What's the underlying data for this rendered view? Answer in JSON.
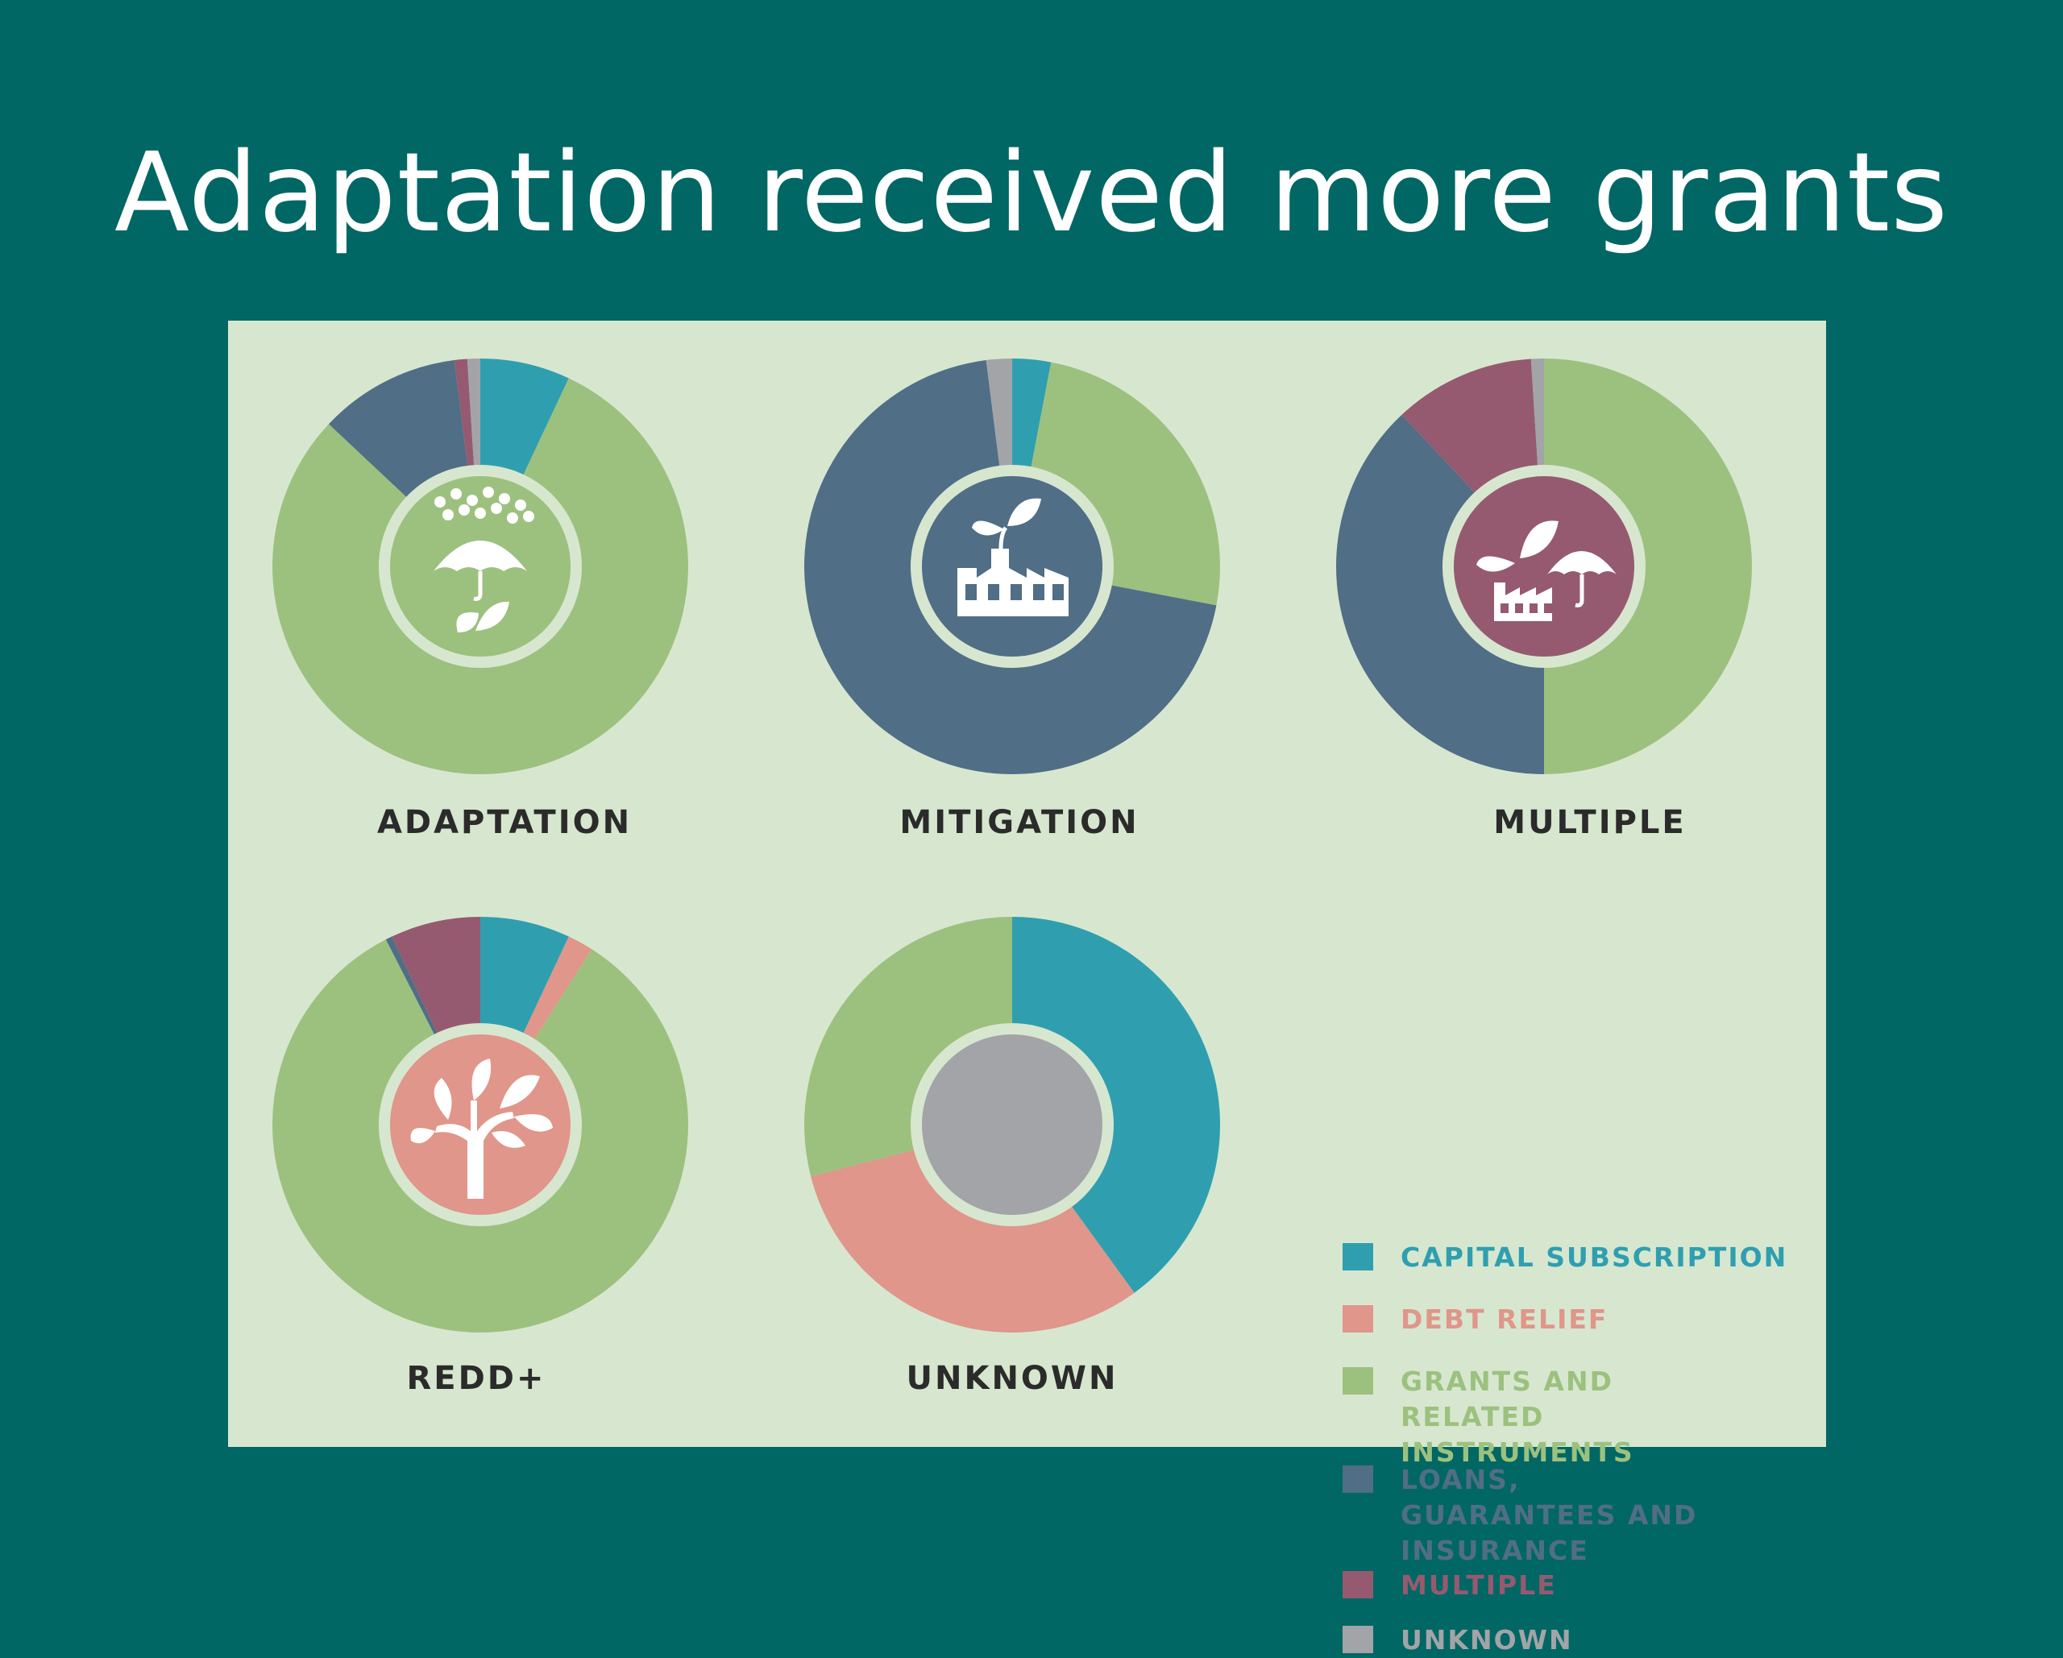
{
  "slide": {
    "title": "Adaptation received more grants"
  },
  "colors": {
    "background": "#006764",
    "panel": "#d7e7cf",
    "capital_subscription": "#2f9fb0",
    "debt_relief": "#e0968a",
    "grants": "#9cc17f",
    "loans": "#506e86",
    "multiple": "#955a70",
    "unknown": "#a2a4a8"
  },
  "legend": [
    {
      "key": "capital_subscription",
      "label": "CAPITAL SUBSCRIPTION"
    },
    {
      "key": "debt_relief",
      "label": "DEBT RELIEF"
    },
    {
      "key": "grants",
      "label": "GRANTS AND RELATED INSTRUMENTS"
    },
    {
      "key": "loans",
      "label": "LOANS, GUARANTEES AND INSURANCE"
    },
    {
      "key": "multiple",
      "label": "MULTIPLE"
    },
    {
      "key": "unknown",
      "label": "UNKNOWN"
    }
  ],
  "chart_data": [
    {
      "type": "pie",
      "title": "ADAPTATION",
      "icon": "umbrella-rain-leaf-icon",
      "center_color": "#9cc17f",
      "slices": [
        {
          "category": "CAPITAL SUBSCRIPTION",
          "value": 7.0
        },
        {
          "category": "GRANTS AND RELATED INSTRUMENTS",
          "value": 80.0
        },
        {
          "category": "LOANS, GUARANTEES AND INSURANCE",
          "value": 11.0
        },
        {
          "category": "MULTIPLE",
          "value": 1.0
        },
        {
          "category": "UNKNOWN",
          "value": 1.0
        }
      ]
    },
    {
      "type": "pie",
      "title": "MITIGATION",
      "icon": "factory-leaf-icon",
      "center_color": "#506e86",
      "slices": [
        {
          "category": "CAPITAL SUBSCRIPTION",
          "value": 3.0
        },
        {
          "category": "GRANTS AND RELATED INSTRUMENTS",
          "value": 25.0
        },
        {
          "category": "LOANS, GUARANTEES AND INSURANCE",
          "value": 70.0
        },
        {
          "category": "UNKNOWN",
          "value": 2.0
        }
      ]
    },
    {
      "type": "pie",
      "title": "MULTIPLE",
      "icon": "leaf-factory-umbrella-icon",
      "center_color": "#955a70",
      "slices": [
        {
          "category": "GRANTS AND RELATED INSTRUMENTS",
          "value": 50.0
        },
        {
          "category": "LOANS, GUARANTEES AND INSURANCE",
          "value": 38.0
        },
        {
          "category": "MULTIPLE",
          "value": 11.0
        },
        {
          "category": "UNKNOWN",
          "value": 1.0
        }
      ]
    },
    {
      "type": "pie",
      "title": "REDD+",
      "icon": "tree-icon",
      "center_color": "#e0968a",
      "slices": [
        {
          "category": "CAPITAL SUBSCRIPTION",
          "value": 7.0
        },
        {
          "category": "DEBT RELIEF",
          "value": 2.0
        },
        {
          "category": "GRANTS AND RELATED INSTRUMENTS",
          "value": 83.5
        },
        {
          "category": "LOANS, GUARANTEES AND INSURANCE",
          "value": 0.5
        },
        {
          "category": "MULTIPLE",
          "value": 7.0
        }
      ]
    },
    {
      "type": "pie",
      "title": "UNKNOWN",
      "icon": "none",
      "center_color": "#a2a4a8",
      "slices": [
        {
          "category": "CAPITAL SUBSCRIPTION",
          "value": 40.0
        },
        {
          "category": "DEBT RELIEF",
          "value": 31.0
        },
        {
          "category": "GRANTS AND RELATED INSTRUMENTS",
          "value": 29.0
        }
      ]
    }
  ]
}
